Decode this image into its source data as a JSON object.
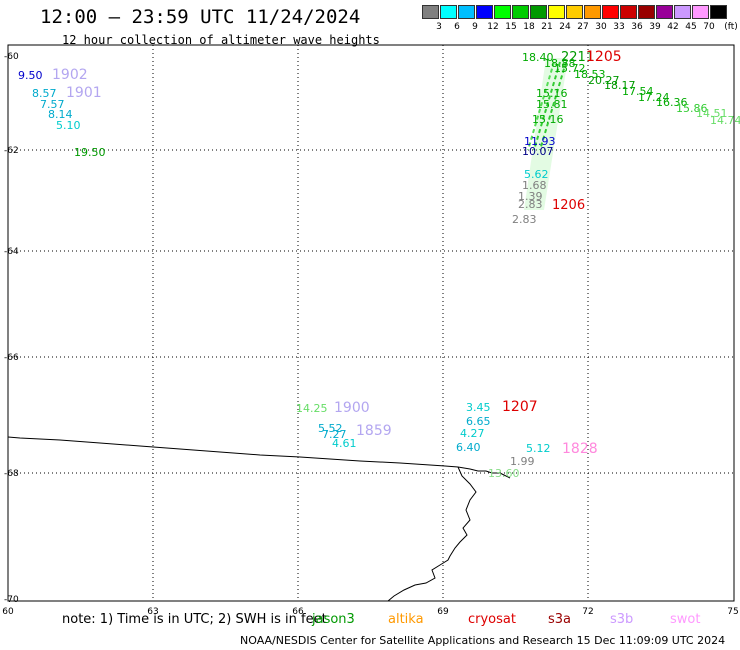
{
  "title": "12:00 — 23:59 UTC 11/24/2024",
  "subtitle": "12 hour collection of altimeter wave heights",
  "colorbar": {
    "unit_label": "(ft)",
    "levels": [
      {
        "label": "3",
        "color": "#808080"
      },
      {
        "label": "6",
        "color": "#00ffff"
      },
      {
        "label": "9",
        "color": "#00bfff"
      },
      {
        "label": "12",
        "color": "#0000ff"
      },
      {
        "label": "15",
        "color": "#00ff00"
      },
      {
        "label": "18",
        "color": "#00cc00"
      },
      {
        "label": "21",
        "color": "#009900"
      },
      {
        "label": "24",
        "color": "#ffff00"
      },
      {
        "label": "27",
        "color": "#ffcc00"
      },
      {
        "label": "30",
        "color": "#ff9900"
      },
      {
        "label": "33",
        "color": "#ff0000"
      },
      {
        "label": "36",
        "color": "#cc0000"
      },
      {
        "label": "39",
        "color": "#990000"
      },
      {
        "label": "42",
        "color": "#990099"
      },
      {
        "label": "45",
        "color": "#cc99ff"
      },
      {
        "label": "70",
        "color": "#ff99ff"
      },
      {
        "label": "",
        "color": "#000000"
      }
    ]
  },
  "axes": {
    "lon_ticks": [
      "60",
      "63",
      "66",
      "69",
      "72",
      "75"
    ],
    "lat_ticks": [
      "-60",
      "-62",
      "-64",
      "-66",
      "-68",
      "-70"
    ]
  },
  "observations": [
    {
      "text": "9.50",
      "color": "#0000cc"
    },
    {
      "text": "1902",
      "color": "#b3a6f0"
    },
    {
      "text": "8.57",
      "color": "#00aacc"
    },
    {
      "text": "1901",
      "color": "#b3a6f0"
    },
    {
      "text": "7.57",
      "color": "#00aacc"
    },
    {
      "text": "8.14",
      "color": "#00aacc"
    },
    {
      "text": "5.10",
      "color": "#00cccc"
    },
    {
      "text": "19.50",
      "color": "#009900"
    },
    {
      "text": "18.40",
      "color": "#00aa00"
    },
    {
      "text": "2211",
      "color": "#009900"
    },
    {
      "text": "1205",
      "color": "#dd0000"
    },
    {
      "text": "18.88",
      "color": "#00aa00"
    },
    {
      "text": "15.72",
      "color": "#00aa00"
    },
    {
      "text": "18.53",
      "color": "#00aa00"
    },
    {
      "text": "20.27",
      "color": "#009900"
    },
    {
      "text": "18.17",
      "color": "#009900"
    },
    {
      "text": "17.54",
      "color": "#00aa00"
    },
    {
      "text": "17.24",
      "color": "#00aa00"
    },
    {
      "text": "16.36",
      "color": "#00aa00"
    },
    {
      "text": "15.86",
      "color": "#33cc33"
    },
    {
      "text": "14.51",
      "color": "#66dd66"
    },
    {
      "text": "14.74",
      "color": "#66dd66"
    },
    {
      "text": "15.16",
      "color": "#00aa00"
    },
    {
      "text": "15.81",
      "color": "#00aa00"
    },
    {
      "text": "15.16",
      "color": "#00aa00"
    },
    {
      "text": "11.93",
      "color": "#0000cc"
    },
    {
      "text": "10.07",
      "color": "#000088"
    },
    {
      "text": "5.62",
      "color": "#00cccc"
    },
    {
      "text": "1.68",
      "color": "#808080"
    },
    {
      "text": "1.39",
      "color": "#808080"
    },
    {
      "text": "2.83",
      "color": "#808080"
    },
    {
      "text": "1206",
      "color": "#dd0000"
    },
    {
      "text": "2.83",
      "color": "#808080"
    },
    {
      "text": "14.25",
      "color": "#66dd66"
    },
    {
      "text": "1900",
      "color": "#b3a6f0"
    },
    {
      "text": "5.52",
      "color": "#00aacc"
    },
    {
      "text": "7.27",
      "color": "#00aacc"
    },
    {
      "text": "1859",
      "color": "#b3a6f0"
    },
    {
      "text": "4.61",
      "color": "#00cccc"
    },
    {
      "text": "3.45",
      "color": "#00cccc"
    },
    {
      "text": "1207",
      "color": "#dd0000"
    },
    {
      "text": "6.65",
      "color": "#00aacc"
    },
    {
      "text": "4.27",
      "color": "#00cccc"
    },
    {
      "text": "6.40",
      "color": "#00aacc"
    },
    {
      "text": "5.12",
      "color": "#00cccc"
    },
    {
      "text": "1828",
      "color": "#ff88dd"
    },
    {
      "text": "1.99",
      "color": "#808080"
    },
    {
      "text": "13.60",
      "color": "#88dd88"
    }
  ],
  "note": "note: 1) Time is in UTC; 2) SWH is in feet",
  "satellites": [
    {
      "name": "jason3",
      "color": "#009900"
    },
    {
      "name": "altika",
      "color": "#ff9900"
    },
    {
      "name": "cryosat",
      "color": "#dd0000"
    },
    {
      "name": "s3a",
      "color": "#990000"
    },
    {
      "name": "s3b",
      "color": "#cc99ff"
    },
    {
      "name": "swot",
      "color": "#ff99ff"
    }
  ],
  "credit": "NOAA/NESDIS Center for Satellite Applications and Research     15 Dec 11:09:09 UTC 2024"
}
